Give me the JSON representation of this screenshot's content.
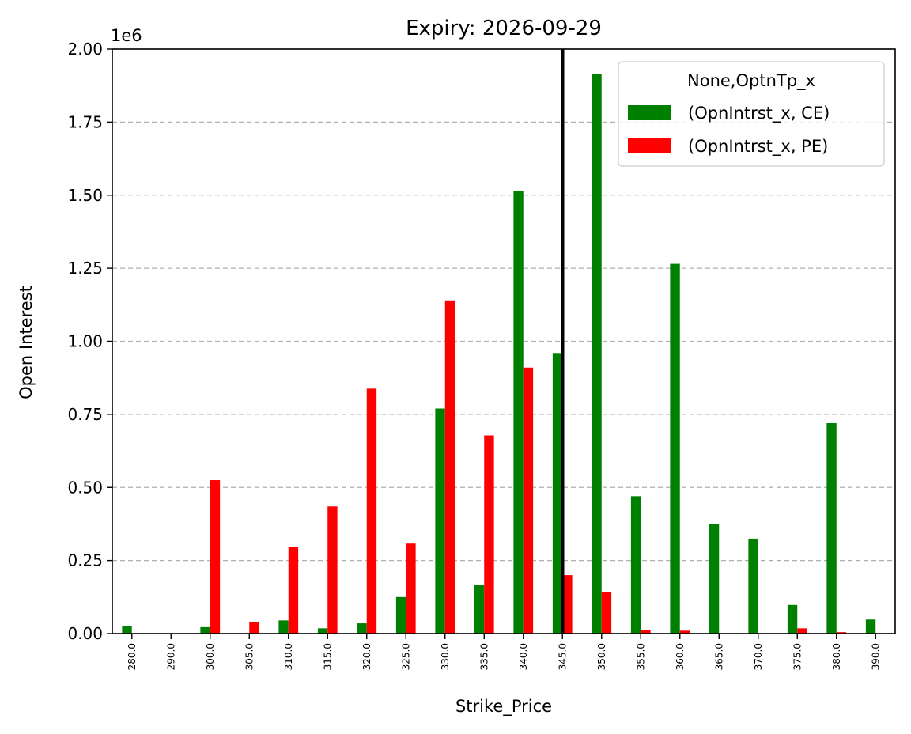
{
  "chart_data": {
    "type": "bar",
    "title": "Expiry: 2026-09-29",
    "xlabel": "Strike_Price",
    "ylabel": "Open Interest",
    "y_offset_label": "1e6",
    "ylim": [
      0,
      2.0
    ],
    "yticks": [
      "0.00",
      "0.25",
      "0.50",
      "0.75",
      "1.00",
      "1.25",
      "1.50",
      "1.75",
      "2.00"
    ],
    "grid": "y-dashed",
    "categories": [
      "280.0",
      "290.0",
      "300.0",
      "305.0",
      "310.0",
      "315.0",
      "320.0",
      "325.0",
      "330.0",
      "335.0",
      "340.0",
      "345.0",
      "350.0",
      "355.0",
      "360.0",
      "365.0",
      "370.0",
      "375.0",
      "380.0",
      "390.0"
    ],
    "series": [
      {
        "name": "(OpnIntrst_x, CE)",
        "color": "#008000",
        "values": [
          0.025,
          0.0,
          0.022,
          0.0,
          0.045,
          0.018,
          0.035,
          0.125,
          0.77,
          0.165,
          1.515,
          0.96,
          1.915,
          0.47,
          1.265,
          0.375,
          0.325,
          0.098,
          0.72,
          0.048
        ]
      },
      {
        "name": "(OpnIntrst_x, PE)",
        "color": "#ff0000",
        "values": [
          0.0,
          0.0,
          0.525,
          0.04,
          0.295,
          0.435,
          0.838,
          0.308,
          1.14,
          0.678,
          0.91,
          0.2,
          0.142,
          0.013,
          0.01,
          0.0,
          0.0,
          0.018,
          0.005,
          0.0
        ]
      }
    ],
    "vline": {
      "category": "345.0",
      "color": "#000000"
    },
    "legend": {
      "title": "None,OptnTp_x",
      "placement": "top-right"
    }
  }
}
